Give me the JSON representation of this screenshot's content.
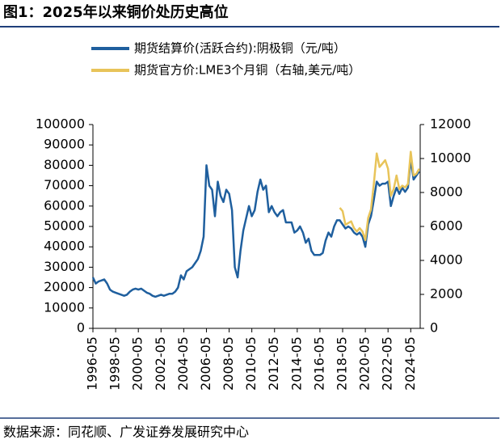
{
  "chart_data": {
    "type": "line",
    "title": "图1：2025年以来铜价处历史高位",
    "source": "数据来源：同花顺、广发证券发展研究中心",
    "x": [
      "1996-05",
      "1996-08",
      "1996-11",
      "1997-02",
      "1997-05",
      "1997-08",
      "1997-11",
      "1998-02",
      "1998-05",
      "1998-08",
      "1998-11",
      "1999-02",
      "1999-05",
      "1999-08",
      "1999-11",
      "2000-02",
      "2000-05",
      "2000-08",
      "2000-11",
      "2001-02",
      "2001-05",
      "2001-08",
      "2001-11",
      "2002-02",
      "2002-05",
      "2002-08",
      "2002-11",
      "2003-02",
      "2003-05",
      "2003-08",
      "2003-11",
      "2004-02",
      "2004-05",
      "2004-08",
      "2004-11",
      "2005-02",
      "2005-05",
      "2005-08",
      "2005-11",
      "2006-02",
      "2006-05",
      "2006-08",
      "2006-11",
      "2007-02",
      "2007-05",
      "2007-08",
      "2007-11",
      "2008-02",
      "2008-05",
      "2008-08",
      "2008-11",
      "2009-02",
      "2009-05",
      "2009-08",
      "2009-11",
      "2010-02",
      "2010-05",
      "2010-08",
      "2010-11",
      "2011-02",
      "2011-05",
      "2011-08",
      "2011-11",
      "2012-02",
      "2012-05",
      "2012-08",
      "2012-11",
      "2013-02",
      "2013-05",
      "2013-08",
      "2013-11",
      "2014-02",
      "2014-05",
      "2014-08",
      "2014-11",
      "2015-02",
      "2015-05",
      "2015-08",
      "2015-11",
      "2016-02",
      "2016-05",
      "2016-08",
      "2016-11",
      "2017-02",
      "2017-05",
      "2017-08",
      "2017-11",
      "2018-02",
      "2018-05",
      "2018-08",
      "2018-11",
      "2019-02",
      "2019-05",
      "2019-08",
      "2019-11",
      "2020-02",
      "2020-05",
      "2020-08",
      "2020-11",
      "2021-02",
      "2021-05",
      "2021-08",
      "2021-11",
      "2022-02",
      "2022-05",
      "2022-08",
      "2022-11",
      "2023-02",
      "2023-05",
      "2023-08",
      "2023-11",
      "2024-02",
      "2024-05",
      "2024-08",
      "2024-11",
      "2025-02"
    ],
    "series": [
      {
        "name": "期货结算价(活跃合约):阴极铜（元/吨）",
        "color": "#1f5f9e",
        "values": [
          25000,
          22000,
          23000,
          23500,
          24000,
          22000,
          19000,
          18000,
          17500,
          17000,
          16500,
          16000,
          16500,
          18000,
          19000,
          19500,
          19000,
          19500,
          18500,
          17500,
          17000,
          16000,
          15500,
          16000,
          16500,
          16000,
          16500,
          17000,
          17000,
          18000,
          20000,
          26000,
          24000,
          28000,
          29000,
          30000,
          32000,
          34000,
          38000,
          45000,
          80000,
          70000,
          68000,
          55000,
          72000,
          65000,
          62000,
          68000,
          66000,
          58000,
          30000,
          25000,
          38000,
          48000,
          54000,
          60000,
          55000,
          58000,
          67000,
          73000,
          68000,
          70000,
          57000,
          60000,
          57000,
          55000,
          57000,
          58000,
          52000,
          52000,
          52000,
          47000,
          48000,
          50000,
          47000,
          42000,
          44000,
          38000,
          36000,
          36000,
          36000,
          37000,
          43000,
          47000,
          45000,
          50000,
          53000,
          53000,
          51000,
          49000,
          50000,
          49000,
          47000,
          46000,
          47000,
          45000,
          40000,
          51000,
          55000,
          63000,
          72000,
          70000,
          71000,
          71000,
          72000,
          60000,
          65000,
          69000,
          66000,
          69000,
          67000,
          69000,
          83000,
          73000,
          75000,
          77000
        ]
      },
      {
        "name": "期货官方价:LME3个月铜（右轴,美元/吨）",
        "color": "#e8c45a",
        "axis": "y2",
        "values": [
          null,
          null,
          null,
          null,
          null,
          null,
          null,
          null,
          null,
          null,
          null,
          null,
          null,
          null,
          null,
          null,
          null,
          null,
          null,
          null,
          null,
          null,
          null,
          null,
          null,
          null,
          null,
          null,
          null,
          null,
          null,
          null,
          null,
          null,
          null,
          null,
          null,
          null,
          null,
          null,
          null,
          null,
          null,
          null,
          null,
          null,
          null,
          null,
          null,
          null,
          null,
          null,
          null,
          null,
          null,
          null,
          null,
          null,
          null,
          null,
          null,
          null,
          null,
          null,
          null,
          null,
          null,
          null,
          null,
          null,
          null,
          null,
          null,
          null,
          null,
          null,
          null,
          null,
          null,
          null,
          null,
          null,
          null,
          null,
          null,
          null,
          null,
          7100,
          6900,
          6100,
          6200,
          6300,
          5900,
          5700,
          5900,
          5700,
          5200,
          6500,
          7000,
          8500,
          10300,
          9500,
          9700,
          9900,
          9400,
          7800,
          8200,
          9000,
          8200,
          8400,
          8300,
          8500,
          10400,
          9000,
          9100,
          9400
        ]
      }
    ],
    "xlim": [
      "1996-05",
      "2025-03"
    ],
    "xticks": [
      "1996-05",
      "1998-05",
      "2000-05",
      "2002-05",
      "2004-05",
      "2006-05",
      "2008-05",
      "2010-05",
      "2012-05",
      "2014-05",
      "2016-05",
      "2018-05",
      "2020-05",
      "2022-05",
      "2024-05"
    ],
    "ylim": [
      0,
      100000
    ],
    "yticks": [
      0,
      10000,
      20000,
      30000,
      40000,
      50000,
      60000,
      70000,
      80000,
      90000,
      100000
    ],
    "y2lim": [
      0,
      12000
    ],
    "y2ticks": [
      0,
      2000,
      4000,
      6000,
      8000,
      10000,
      12000
    ]
  }
}
